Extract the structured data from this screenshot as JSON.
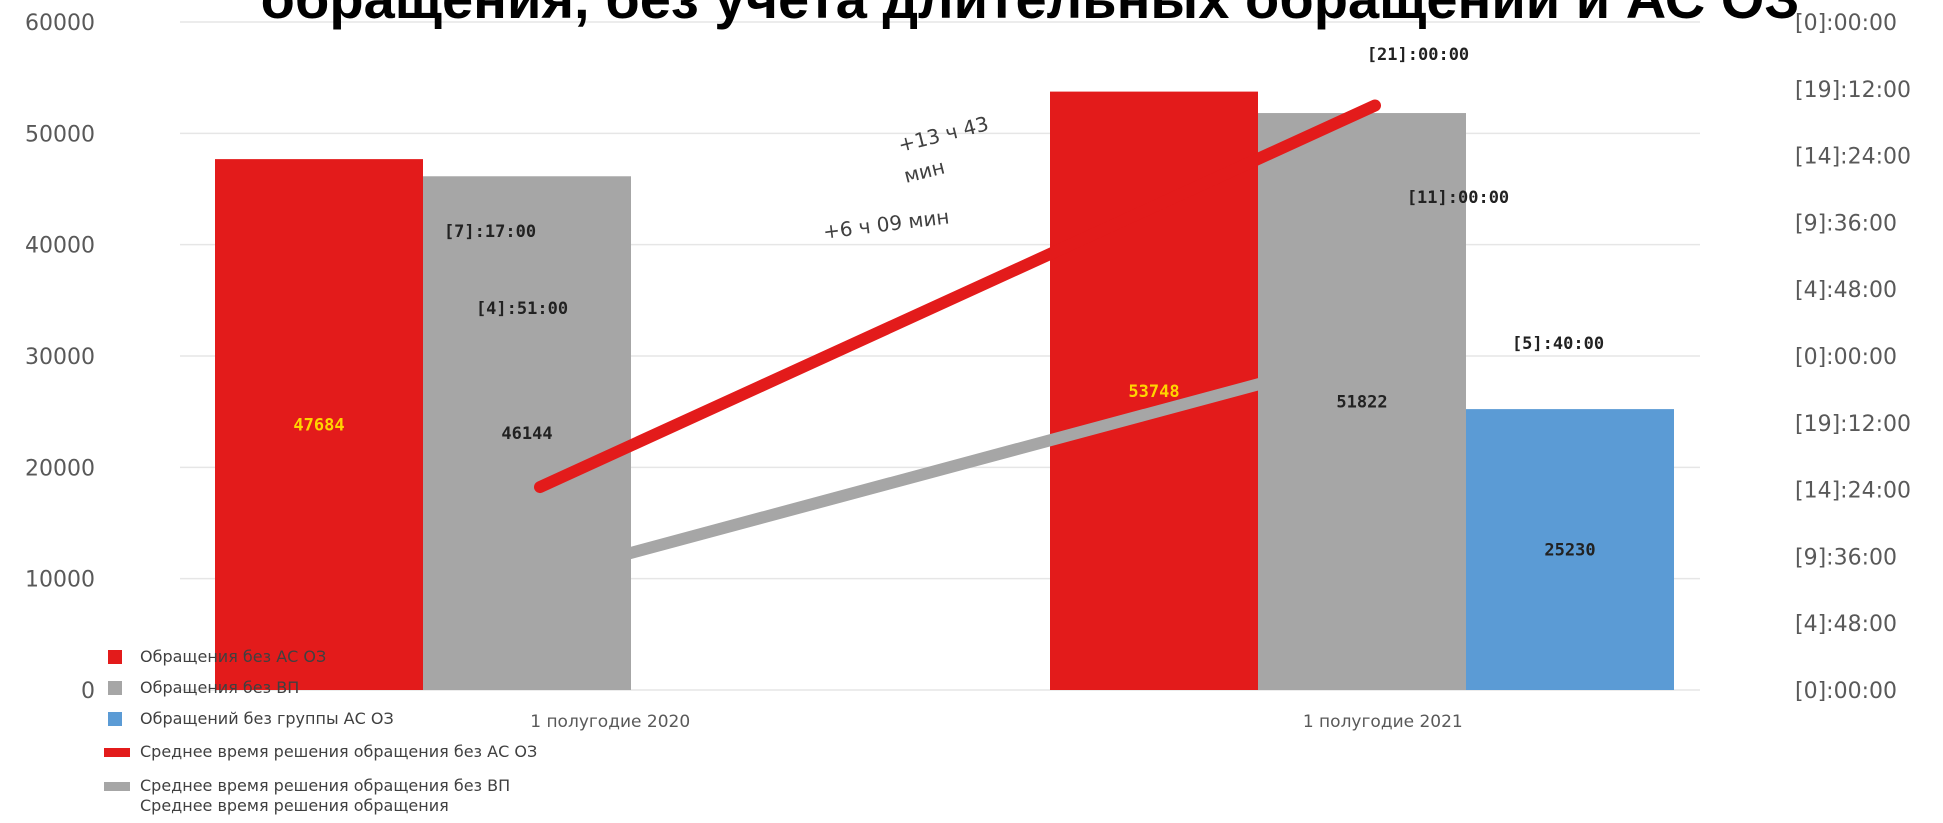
{
  "chart_data": {
    "type": "bar",
    "title": "обращения, без учета длительных обращений и АС ОЗ",
    "categories": [
      "1 полугодие 2020",
      "1 полугодие 2021"
    ],
    "series": [
      {
        "name": "Обращения без АС ОЗ",
        "kind": "bar",
        "axis": "left",
        "color": "#e31b1b",
        "values": [
          47684,
          53748
        ],
        "labels": [
          "47684",
          "53748"
        ],
        "label_color": "#ffd400"
      },
      {
        "name": "Обращения без ВП",
        "kind": "bar",
        "axis": "left",
        "color": "#a6a6a6",
        "values": [
          46144,
          51822
        ],
        "labels": [
          "46144",
          "51822"
        ],
        "label_color": "#222222"
      },
      {
        "name": "Обращений без группы АС ОЗ",
        "kind": "bar",
        "axis": "left",
        "color": "#5b9bd5",
        "values": [
          null,
          25230
        ],
        "labels": [
          null,
          "25230"
        ],
        "label_color": "#222222"
      },
      {
        "name": "Среднее время решения обращения без АС ОЗ",
        "kind": "line",
        "axis": "right",
        "color": "#e31b1b",
        "hours": [
          175,
          504
        ],
        "labels": [
          "[7]:17:00",
          "[21]:00:00"
        ]
      },
      {
        "name": "Среднее время решения обращения без ВП",
        "kind": "line",
        "axis": "right",
        "color": "#a6a6a6",
        "hours": [
          116.85,
          264
        ],
        "labels": [
          "[4]:51:00",
          "[11]:00:00"
        ]
      },
      {
        "name": "Среднее время решения обращения",
        "kind": "label",
        "labels": [
          null,
          "[5]:40:00"
        ]
      }
    ],
    "ylim": [
      0,
      60000
    ],
    "yticks": [
      "0",
      "10000",
      "20000",
      "30000",
      "40000",
      "50000",
      "60000"
    ],
    "y2ticks": [
      "[0]:00:00",
      "[4]:48:00",
      "[9]:36:00",
      "[14]:24:00",
      "[19]:12:00",
      "[0]:00:00",
      "[4]:48:00",
      "[9]:36:00",
      "[14]:24:00",
      "[19]:12:00",
      "[0]:00:00"
    ],
    "y2lim_hours": [
      0,
      576
    ],
    "annotations": [
      "+13 ч 43",
      "мин",
      "+6 ч 09 мин"
    ],
    "grid": true,
    "legend_position": "bottom-left"
  }
}
